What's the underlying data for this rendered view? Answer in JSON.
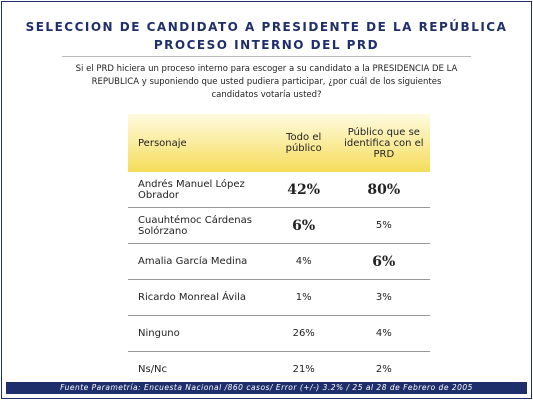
{
  "header": {
    "title": "SELECCION DE CANDIDATO A PRESIDENTE DE LA REPÚBLICA",
    "subtitle": "PROCESO INTERNO DEL PRD"
  },
  "question": [
    "Si el PRD hiciera un proceso interno para escoger a su candidato a la PRESIDENCIA DE LA",
    "REPUBLICA y suponiendo que usted pudiera participar, ¿por cuál de los siguientes",
    "candidatos votaría usted?"
  ],
  "table": {
    "columns": [
      "Personaje",
      "Todo el público",
      "Público que se identifica con el PRD"
    ],
    "rows": [
      [
        "Andrés Manuel López Obrador",
        "42%",
        "80%"
      ],
      [
        "Cuauhtémoc Cárdenas Solórzano",
        "6%",
        "5%"
      ],
      [
        "Amalia García Medina",
        "4%",
        "6%"
      ],
      [
        "Ricardo Monreal Ávila",
        "1%",
        "3%"
      ],
      [
        "Ninguno",
        "26%",
        "4%"
      ],
      [
        "Ns/Nc",
        "21%",
        "2%"
      ]
    ]
  },
  "footer": "Fuente Parametría: Encuesta Nacional /860 casos/ Error (+/-) 3.2% / 25 al 28 de Febrero de 2005"
}
